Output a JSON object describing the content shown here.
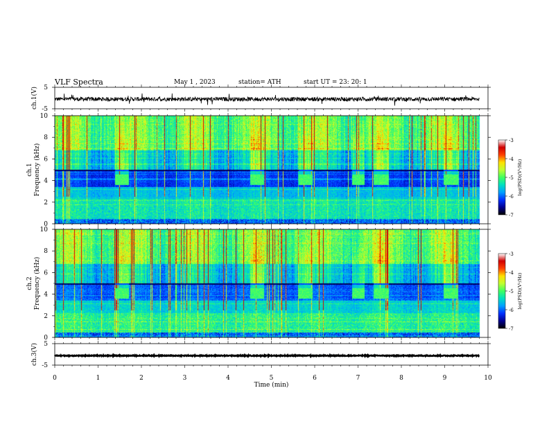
{
  "header": {
    "title": "VLF  Spectra",
    "date": "May 1  , 2023",
    "station": "station= ATH",
    "start": "start  UT  =    23: 20: 1"
  },
  "colors": {
    "background": "#000080",
    "spectrogram_colormap": [
      "#000000",
      "#000090",
      "#0030ff",
      "#00a0ff",
      "#00e0c0",
      "#40ff60",
      "#c0ff30",
      "#ffe000",
      "#ff4000",
      "#d00000",
      "#ffffff"
    ]
  },
  "chart_data": [
    {
      "name": "ch1-waveform",
      "type": "line",
      "ylabel": "ch.1(V)",
      "ylim": [
        -5,
        5
      ],
      "yticks": [
        "5",
        "-5"
      ],
      "x_range_min": [
        0,
        9.8
      ],
      "amplitude_v": 1.2,
      "offset_v": -0.5
    },
    {
      "name": "ch1-spectrogram",
      "type": "heatmap",
      "ylabel": "ch.1\nFrequency  (kHz)",
      "ylim": [
        0,
        10
      ],
      "yticks": [
        "0",
        "2",
        "4",
        "6",
        "8",
        "10"
      ],
      "x_range_min": [
        0,
        9.8
      ],
      "bursts_min": [
        [
          1.38,
          1.7
        ],
        [
          4.5,
          4.82
        ],
        [
          5.62,
          5.95
        ],
        [
          6.85,
          7.15
        ],
        [
          7.35,
          7.7
        ],
        [
          8.97,
          9.3
        ]
      ],
      "burst_freq_khz": [
        3.6,
        4.6
      ],
      "colorbar": {
        "label": "log(PSD)(V²/Hz)",
        "range": [
          -7,
          -3
        ],
        "ticks": [
          "-3",
          "-4",
          "-5",
          "-6",
          "-7"
        ]
      }
    },
    {
      "name": "ch2-spectrogram",
      "type": "heatmap",
      "ylabel": "ch.2\nFrequency  (kHz)",
      "ylim": [
        0,
        10
      ],
      "yticks": [
        "0",
        "2",
        "4",
        "6",
        "8",
        "10"
      ],
      "x_range_min": [
        0,
        9.8
      ],
      "bursts_min": [
        [
          1.38,
          1.7
        ],
        [
          4.5,
          4.82
        ],
        [
          5.62,
          5.95
        ],
        [
          6.85,
          7.15
        ],
        [
          7.35,
          7.7
        ],
        [
          8.97,
          9.3
        ]
      ],
      "burst_freq_khz": [
        3.6,
        4.6
      ],
      "colorbar": {
        "label": "log(PSD)(V²/Hz)",
        "range": [
          -7,
          -3
        ],
        "ticks": [
          "-3",
          "-4",
          "-5",
          "-6",
          "-7"
        ]
      }
    },
    {
      "name": "ch3-waveform",
      "type": "line",
      "ylabel": "ch.3(V)",
      "ylim": [
        -5,
        5
      ],
      "yticks": [
        "5",
        "-5"
      ],
      "x_range_min": [
        0,
        9.8
      ],
      "amplitude_v": 0.2,
      "offset_v": -0.6
    }
  ],
  "x_axis": {
    "label": "Time  (min)",
    "range": [
      0,
      10
    ],
    "ticks": [
      "0",
      "1",
      "2",
      "3",
      "4",
      "5",
      "6",
      "7",
      "8",
      "9",
      "10"
    ]
  }
}
